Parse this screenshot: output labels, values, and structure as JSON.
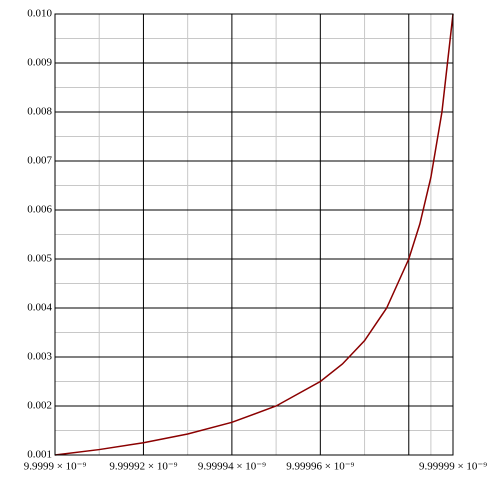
{
  "chart_data": {
    "type": "line",
    "x": [
      9.9999e-09,
      9.99991e-09,
      9.99992e-09,
      9.99993e-09,
      9.99994e-09,
      9.99995e-09,
      9.99996e-09,
      9.999965e-09,
      9.99997e-09,
      9.999975e-09,
      9.99998e-09,
      9.9999825e-09,
      9.999985e-09,
      9.9999875e-09,
      9.99999e-09
    ],
    "series": [
      {
        "color": "#8b0000",
        "values": [
          0.001,
          0.001111,
          0.00125,
          0.001429,
          0.001667,
          0.002,
          0.0025,
          0.002857,
          0.003333,
          0.004,
          0.005,
          0.005714,
          0.006667,
          0.008,
          0.01
        ]
      }
    ],
    "xlim": [
      9.9999e-09,
      9.99999e-09
    ],
    "xticks": [
      {
        "value": 9.9999e-09,
        "label": "9.9999 × 10⁻⁹"
      },
      {
        "value": 9.99992e-09,
        "label": "9.99992 × 10⁻⁹"
      },
      {
        "value": 9.99994e-09,
        "label": "9.99994 × 10⁻⁹"
      },
      {
        "value": 9.99996e-09,
        "label": "9.99996 × 10⁻⁹"
      },
      {
        "value": 9.99999e-09,
        "label": "9.99999 × 10⁻⁹"
      }
    ],
    "xgrid": [
      9.9999e-09,
      9.99992e-09,
      9.99994e-09,
      9.99996e-09,
      9.99998e-09,
      9.99999e-09
    ],
    "ylim": [
      0.001,
      0.01
    ],
    "yticks": [
      0.001,
      0.002,
      0.003,
      0.004,
      0.005,
      0.006,
      0.007,
      0.008,
      0.009,
      {
        "value": 0.01,
        "label": "0.010"
      }
    ],
    "grid": true
  }
}
